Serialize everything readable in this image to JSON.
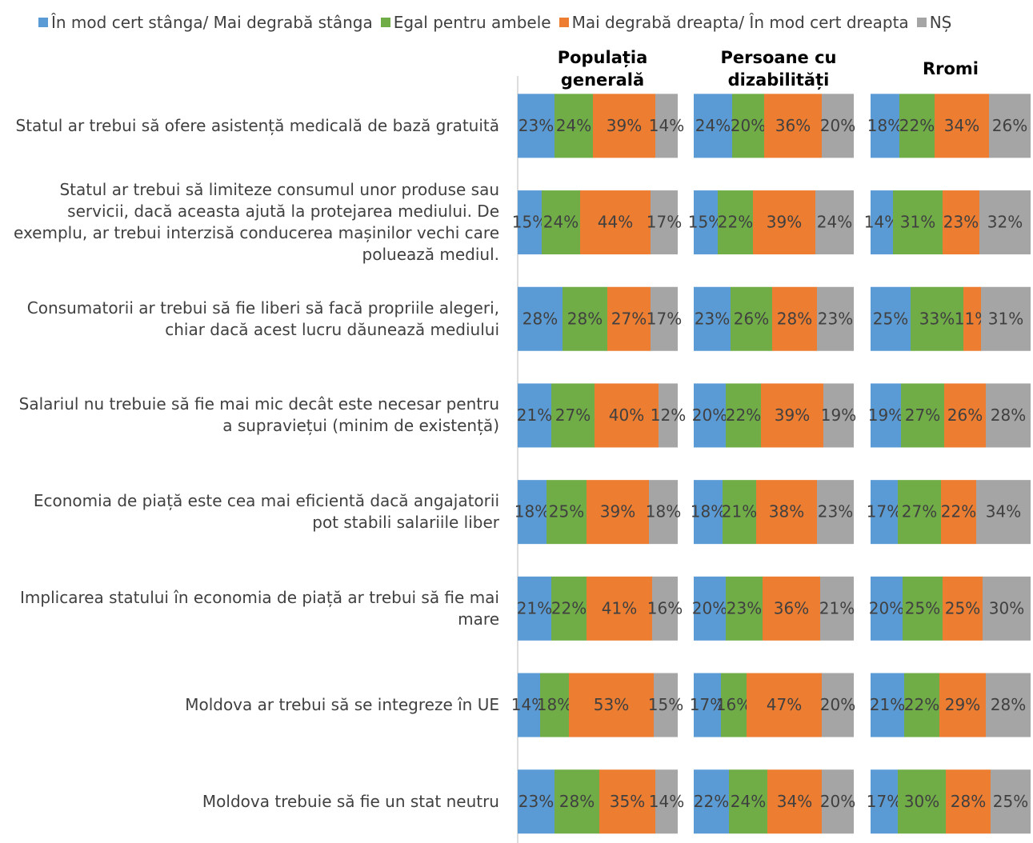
{
  "chart_data": {
    "type": "bar",
    "orientation": "horizontal",
    "stacked": true,
    "series": [
      {
        "name": "În mod cert stânga/ Mai degrabă stânga",
        "color": "#5b9bd5"
      },
      {
        "name": "Egal pentru ambele",
        "color": "#70ad47"
      },
      {
        "name": "Mai degrabă dreapta/ În mod cert dreapta",
        "color": "#ed7d31"
      },
      {
        "name": "NȘ",
        "color": "#a5a5a5"
      }
    ],
    "categories": [
      "Statul ar trebui să ofere asistență medicală de bază gratuită",
      "Statul ar trebui să limiteze consumul unor produse sau servicii, dacă aceasta ajută la protejarea mediului. De exemplu, ar trebui interzisă conducerea mașinilor vechi care poluează mediul.",
      "Consumatorii ar trebui să fie liberi să facă propriile alegeri, chiar dacă acest lucru dăunează mediului",
      "Salariul nu trebuie să fie mai mic decât este necesar pentru a supraviețui (minim de existență)",
      "Economia de piață este cea mai eficientă dacă angajatorii pot stabili salariile liber",
      "Implicarea statului în economia de piață ar trebui să fie mai mare",
      "Moldova ar trebui să se integreze în UE",
      "Moldova trebuie să fie un stat neutru"
    ],
    "xlim": [
      0,
      100
    ],
    "panels": [
      {
        "title": "Populația generală",
        "values": [
          [
            23,
            24,
            39,
            14
          ],
          [
            15,
            24,
            44,
            17
          ],
          [
            28,
            28,
            27,
            17
          ],
          [
            21,
            27,
            40,
            12
          ],
          [
            18,
            25,
            39,
            18
          ],
          [
            21,
            22,
            41,
            16
          ],
          [
            14,
            18,
            53,
            15
          ],
          [
            23,
            28,
            35,
            14
          ]
        ],
        "value_labels": [
          [
            "23%",
            "24%",
            "39%",
            "14%"
          ],
          [
            "15%",
            "24%",
            "44%",
            "17%"
          ],
          [
            "28%",
            "28%",
            "27%",
            "17%"
          ],
          [
            "21%",
            "27%",
            "40%",
            "12%"
          ],
          [
            "18%",
            "25%",
            "39%",
            "18%"
          ],
          [
            "21%",
            "22%",
            "41%",
            "16%"
          ],
          [
            "14%",
            "18%",
            "53%",
            "15%"
          ],
          [
            "23%",
            "28%",
            "35%",
            "14%"
          ]
        ]
      },
      {
        "title": "Persoane cu dizabilități",
        "values": [
          [
            24,
            20,
            36,
            20
          ],
          [
            15,
            22,
            39,
            24
          ],
          [
            23,
            26,
            28,
            23
          ],
          [
            20,
            22,
            39,
            19
          ],
          [
            18,
            21,
            38,
            23
          ],
          [
            20,
            23,
            36,
            21
          ],
          [
            17,
            16,
            47,
            20
          ],
          [
            22,
            24,
            34,
            20
          ]
        ],
        "value_labels": [
          [
            "24%",
            "20%",
            "36%",
            "20%"
          ],
          [
            "15%",
            "22%",
            "39%",
            "24%"
          ],
          [
            "23%",
            "26%",
            "28%",
            "23%"
          ],
          [
            "20%",
            "22%",
            "39%",
            "19%"
          ],
          [
            "18%",
            "21%",
            "38%",
            "23%"
          ],
          [
            "20%",
            "23%",
            "36%",
            "21%"
          ],
          [
            "17%",
            "16%",
            "47%",
            "20%"
          ],
          [
            "22%",
            "24%",
            "34%",
            "20%"
          ]
        ]
      },
      {
        "title": "Rromi",
        "values": [
          [
            18,
            22,
            34,
            26
          ],
          [
            14,
            31,
            23,
            32
          ],
          [
            25,
            33,
            11,
            31
          ],
          [
            19,
            27,
            26,
            28
          ],
          [
            17,
            27,
            22,
            34
          ],
          [
            20,
            25,
            25,
            30
          ],
          [
            21,
            22,
            29,
            28
          ],
          [
            17,
            30,
            28,
            25
          ]
        ],
        "value_labels": [
          [
            "18%",
            "22%",
            "34%",
            "26%"
          ],
          [
            "14%",
            "31%",
            "23%",
            "32%"
          ],
          [
            "25%",
            "33%",
            "11%",
            "31%"
          ],
          [
            "19%",
            "27%",
            "26%",
            "28%"
          ],
          [
            "17%",
            "27%",
            "22%",
            "34%"
          ],
          [
            "20%",
            "25%",
            "25%",
            "30%"
          ],
          [
            "21%",
            "22%",
            "29%",
            "28%"
          ],
          [
            "17%",
            "30%",
            "28%",
            "25%"
          ]
        ]
      }
    ]
  }
}
